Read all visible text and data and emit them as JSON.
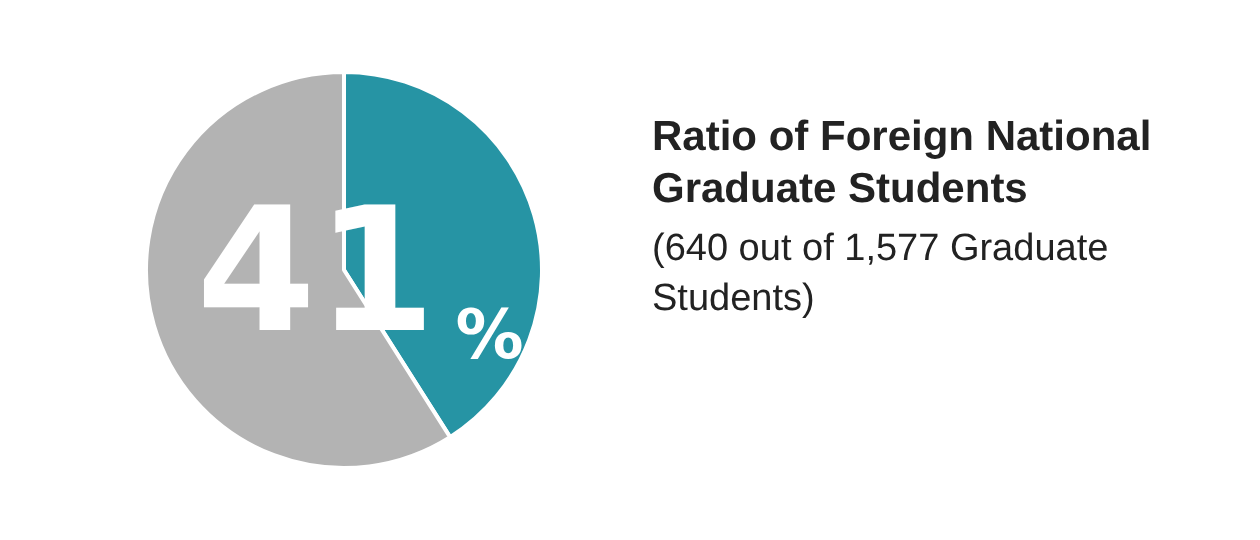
{
  "chart_data": {
    "type": "pie",
    "title": "Ratio of Foreign National Graduate Students",
    "subtitle": "(640 out of 1,577 Graduate Students)",
    "categories": [
      null,
      null
    ],
    "values": [
      41,
      59
    ],
    "colors": [
      "#2694a4",
      "#b3b3b3"
    ],
    "value_labels": [
      "41%",
      null
    ],
    "legend": false
  }
}
